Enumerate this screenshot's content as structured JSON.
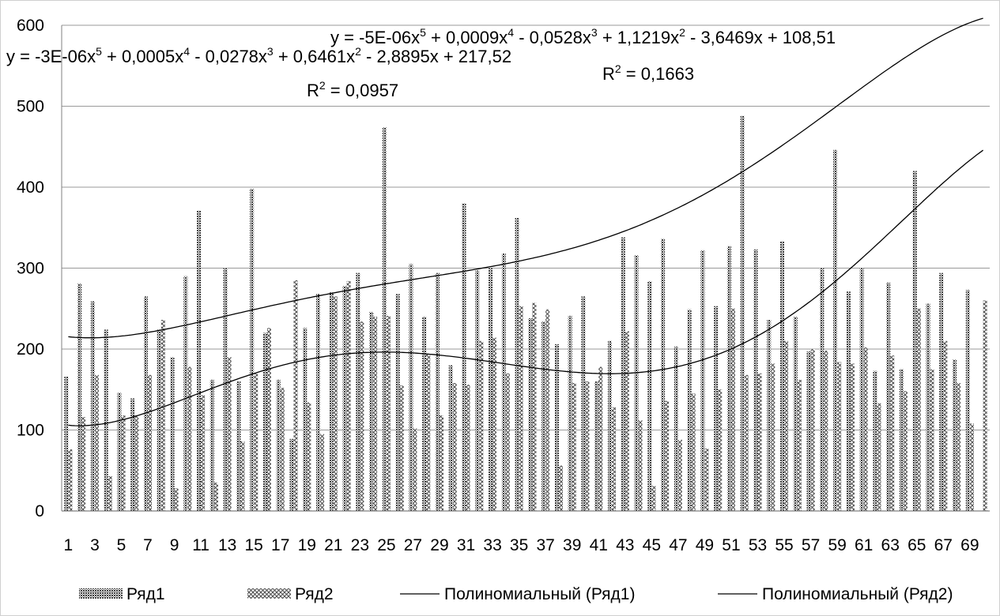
{
  "chart_data": {
    "type": "bar",
    "title": "",
    "xlabel": "",
    "ylabel": "",
    "ylim": [
      0,
      600
    ],
    "yticks": [
      0,
      100,
      200,
      300,
      400,
      500,
      600
    ],
    "grid": "horizontal",
    "legend_position": "bottom",
    "x_tick_labels": [
      "1",
      "3",
      "5",
      "7",
      "9",
      "11",
      "13",
      "15",
      "17",
      "19",
      "21",
      "23",
      "25",
      "27",
      "29",
      "31",
      "33",
      "35",
      "37",
      "39",
      "41",
      "43",
      "45",
      "47",
      "49",
      "51",
      "53",
      "55",
      "57",
      "59",
      "61",
      "63",
      "65",
      "67",
      "69"
    ],
    "categories": [
      1,
      2,
      3,
      4,
      5,
      6,
      7,
      8,
      9,
      10,
      11,
      12,
      13,
      14,
      15,
      16,
      17,
      18,
      19,
      20,
      21,
      22,
      23,
      24,
      25,
      26,
      27,
      28,
      29,
      30,
      31,
      32,
      33,
      34,
      35,
      36,
      37,
      38,
      39,
      40,
      41,
      42,
      43,
      44,
      45,
      46,
      47,
      48,
      49,
      50,
      51,
      52,
      53,
      54,
      55,
      56,
      57,
      58,
      59,
      60,
      61,
      62,
      63,
      64,
      65,
      66,
      67,
      68,
      69,
      70
    ],
    "series": [
      {
        "name": "Ряд1",
        "values": [
          166,
          281,
          259,
          224,
          146,
          139,
          265,
          224,
          190,
          290,
          371,
          162,
          300,
          160,
          398,
          220,
          162,
          89,
          226,
          268,
          270,
          278,
          294,
          246,
          474,
          268,
          305,
          240,
          294,
          180,
          380,
          297,
          300,
          318,
          362,
          238,
          234,
          206,
          241,
          265,
          160,
          210,
          338,
          316,
          284,
          336,
          203,
          249,
          322,
          253,
          327,
          488,
          323,
          236,
          333,
          240,
          197,
          300,
          446,
          271,
          300,
          173,
          282,
          175,
          420,
          256,
          294,
          187,
          273,
          0
        ],
        "pattern": "dense-dots",
        "color": "#555555"
      },
      {
        "name": "Ряд2",
        "values": [
          76,
          116,
          168,
          43,
          118,
          118,
          168,
          236,
          28,
          178,
          143,
          35,
          190,
          86,
          170,
          226,
          152,
          285,
          134,
          95,
          265,
          284,
          234,
          240,
          241,
          155,
          102,
          194,
          118,
          158,
          156,
          210,
          214,
          170,
          253,
          257,
          249,
          56,
          158,
          160,
          178,
          128,
          222,
          112,
          31,
          136,
          88,
          145,
          77,
          150,
          250,
          168,
          170,
          182,
          210,
          162,
          200,
          198,
          184,
          182,
          202,
          133,
          192,
          148,
          250,
          175,
          210,
          158,
          108,
          260
        ],
        "pattern": "cross-hatch",
        "color": "#555555"
      }
    ],
    "trendlines": [
      {
        "name": "Полиномиальный (Ряд1)",
        "type": "polynomial",
        "order": 5,
        "coefficients": [
          -3e-06,
          0.0005,
          -0.0278,
          0.6461,
          -2.8895,
          217.52
        ],
        "equation": "y = -3E-06x5 + 0,0005x4 - 0,0278x3 + 0,6461x2 - 2,8895x + 217,52",
        "r2": "R2 = 0,0957",
        "equation_parts": [
          {
            "t": "y = -3E-06x"
          },
          {
            "t": "5",
            "sup": true
          },
          {
            "t": " + 0,0005x"
          },
          {
            "t": "4",
            "sup": true
          },
          {
            "t": " - 0,0278x"
          },
          {
            "t": "3",
            "sup": true
          },
          {
            "t": " + 0,6461x"
          },
          {
            "t": "2",
            "sup": true
          },
          {
            "t": " - 2,8895x + 217,52"
          }
        ],
        "r2_parts": [
          {
            "t": "R"
          },
          {
            "t": "2",
            "sup": true
          },
          {
            "t": " = 0,0957"
          }
        ]
      },
      {
        "name": "Полиномиальный (Ряд2)",
        "type": "polynomial",
        "order": 5,
        "coefficients": [
          -5e-06,
          0.0009,
          -0.0528,
          1.1219,
          -3.6469,
          108.51
        ],
        "equation": "y = -5E-06x5 + 0,0009x4 - 0,0528x3 + 1,1219x2 - 3,6469x + 108,51",
        "r2": "R2 = 0,1663",
        "equation_parts": [
          {
            "t": "y = -5E-06x"
          },
          {
            "t": "5",
            "sup": true
          },
          {
            "t": " + 0,0009x"
          },
          {
            "t": "4",
            "sup": true
          },
          {
            "t": " - 0,0528x"
          },
          {
            "t": "3",
            "sup": true
          },
          {
            "t": " + 1,1219x"
          },
          {
            "t": "2",
            "sup": true
          },
          {
            "t": " - 3,6469x + 108,51"
          }
        ],
        "r2_parts": [
          {
            "t": "R"
          },
          {
            "t": "2",
            "sup": true
          },
          {
            "t": " = 0,1663"
          }
        ]
      }
    ],
    "legend": [
      "Ряд1",
      "Ряд2",
      "Полиномиальный (Ряд1)",
      "Полиномиальный (Ряд2)"
    ]
  }
}
